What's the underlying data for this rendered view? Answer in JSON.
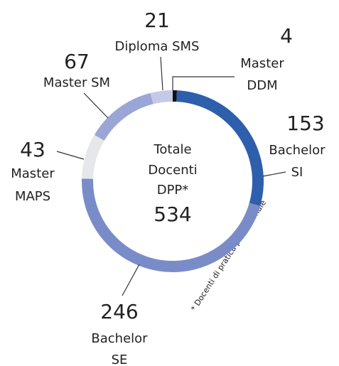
{
  "chart_data": {
    "type": "donut",
    "segments": [
      {
        "label_lines": [
          "Master",
          "DDM"
        ],
        "value": 4,
        "color": "#111111"
      },
      {
        "label_lines": [
          "Bachelor",
          "SI"
        ],
        "value": 153,
        "color": "#2e5fac"
      },
      {
        "label_lines": [
          "Bachelor",
          "SE"
        ],
        "value": 246,
        "color": "#7a8cc8"
      },
      {
        "label_lines": [
          "Master",
          "MAPS"
        ],
        "value": 43,
        "color": "#e6e7ea"
      },
      {
        "label_lines": [
          "Master SM"
        ],
        "value": 67,
        "color": "#9aa6d6"
      },
      {
        "label_lines": [
          "Diploma SMS"
        ],
        "value": 21,
        "color": "#c4c9e8"
      }
    ],
    "center_lines": [
      "Totale",
      "Docenti",
      "DPP*"
    ],
    "total": 534,
    "footnote": "* Docenti di pratica professionale"
  }
}
